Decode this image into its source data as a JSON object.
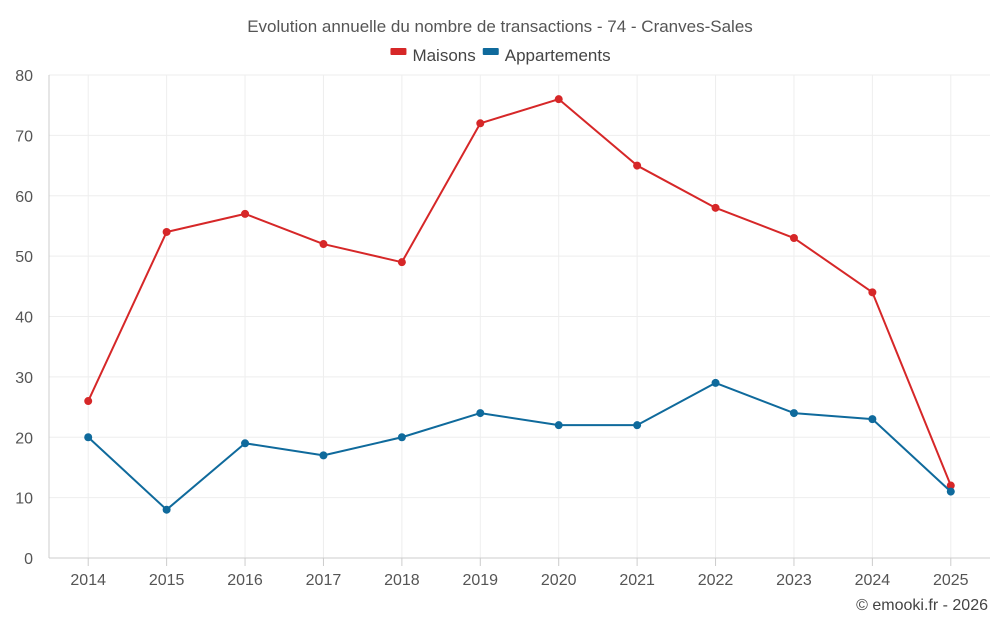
{
  "chart_data": {
    "type": "line",
    "title": "Evolution annuelle du nombre de transactions - 74 - Cranves-Sales",
    "categories": [
      "2014",
      "2015",
      "2016",
      "2017",
      "2018",
      "2019",
      "2020",
      "2021",
      "2022",
      "2023",
      "2024",
      "2025"
    ],
    "series": [
      {
        "name": "Maisons",
        "color": "#d62728",
        "values": [
          26,
          54,
          57,
          52,
          49,
          72,
          76,
          65,
          58,
          53,
          44,
          12
        ]
      },
      {
        "name": "Appartements",
        "color": "#0f6a9c",
        "values": [
          20,
          8,
          19,
          17,
          20,
          24,
          22,
          22,
          29,
          24,
          23,
          11
        ]
      }
    ],
    "ylim": [
      0,
      80
    ],
    "yticks": [
      0,
      10,
      20,
      30,
      40,
      50,
      60,
      70,
      80
    ],
    "grid": true,
    "legend": "top-center",
    "credit": "© emooki.fr - 2026"
  }
}
